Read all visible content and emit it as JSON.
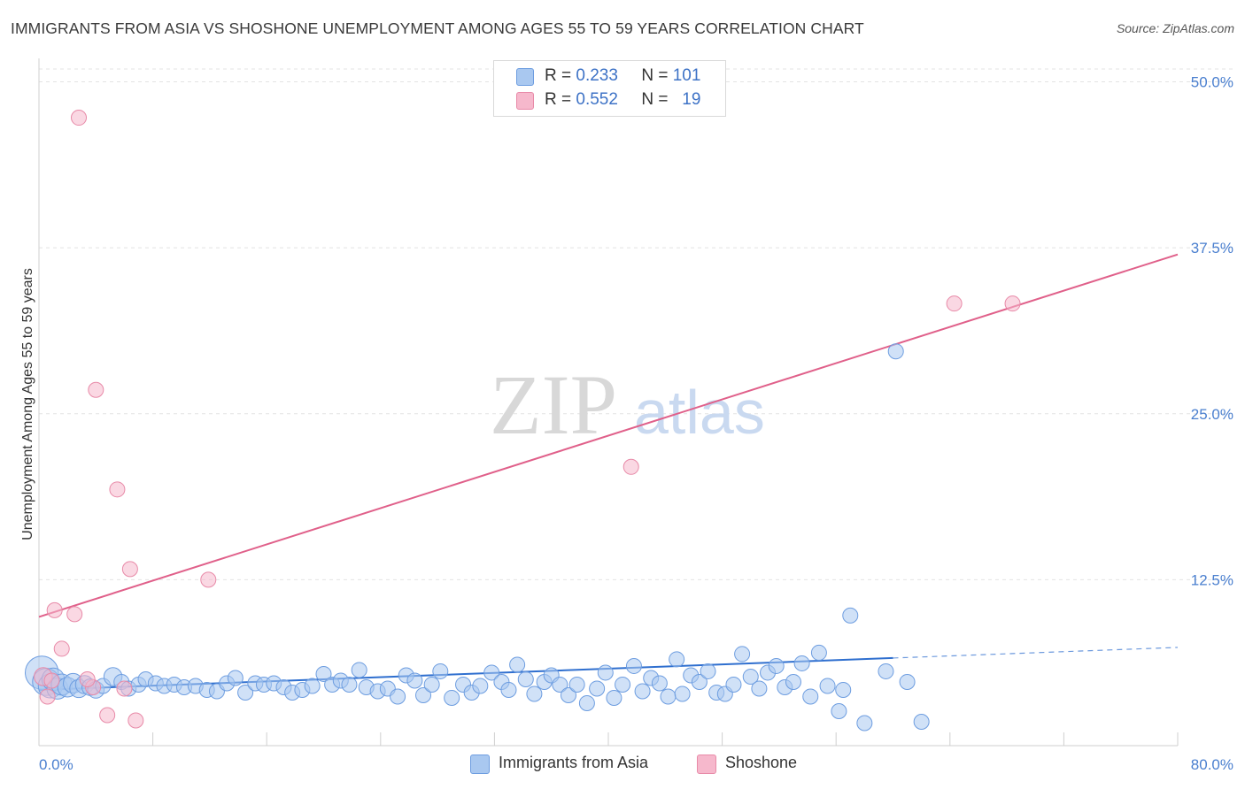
{
  "title": "IMMIGRANTS FROM ASIA VS SHOSHONE UNEMPLOYMENT AMONG AGES 55 TO 59 YEARS CORRELATION CHART",
  "source": "Source: ZipAtlas.com",
  "watermark": {
    "zip": "ZIP",
    "atlas": "atlas"
  },
  "legend": {
    "asia": {
      "r_label": "R =",
      "r_value": "0.233",
      "n_label": "N =",
      "n_value": "101"
    },
    "shoshone": {
      "r_label": "R =",
      "r_value": "0.552",
      "n_label": "N =",
      "n_value": "19"
    }
  },
  "bottom_legend": {
    "asia": "Immigrants from Asia",
    "shoshone": "Shoshone"
  },
  "colors": {
    "asia_fill": "#a9c8f0",
    "asia_stroke": "#6d9de0",
    "asia_line": "#2f6fcf",
    "shoshone_fill": "#f6b8cc",
    "shoshone_stroke": "#e88aa8",
    "shoshone_line": "#e0608a",
    "grid": "#e3e3e3",
    "tick": "#4a7fcf"
  },
  "chart_data": {
    "type": "scatter",
    "title": "IMMIGRANTS FROM ASIA VS SHOSHONE UNEMPLOYMENT AMONG AGES 55 TO 59 YEARS CORRELATION CHART",
    "xlabel": "",
    "ylabel": "Unemployment Among Ages 55 to 59 years",
    "xlim": [
      0,
      80
    ],
    "ylim": [
      0,
      51.5
    ],
    "x_tick_labels": [
      "0.0%",
      "80.0%"
    ],
    "y_ticks": [
      12.5,
      25.0,
      37.5,
      50.0
    ],
    "y_tick_labels": [
      "12.5%",
      "25.0%",
      "37.5%",
      "50.0%"
    ],
    "grid": true,
    "legend_position": "top-center",
    "series": [
      {
        "name": "Immigrants from Asia",
        "r": 0.233,
        "n": 101,
        "trend": {
          "x0": 0,
          "y0": 4.2,
          "x1": 60,
          "y1": 6.6,
          "dash_to_x": 80,
          "dash_to_y": 7.4
        },
        "points": [
          [
            0.2,
            5.5,
            2.2
          ],
          [
            0.5,
            4.8,
            1.8
          ],
          [
            0.8,
            4.5,
            1.6
          ],
          [
            1.0,
            5.0,
            1.5
          ],
          [
            1.3,
            4.3,
            1.4
          ],
          [
            1.6,
            4.6,
            1.4
          ],
          [
            2.0,
            4.4,
            1.3
          ],
          [
            2.4,
            4.7,
            1.3
          ],
          [
            2.8,
            4.3,
            1.2
          ],
          [
            3.2,
            4.6,
            1.2
          ],
          [
            3.6,
            4.4,
            1.1
          ],
          [
            4.0,
            4.2,
            1.1
          ],
          [
            4.5,
            4.5,
            1.0
          ],
          [
            5.2,
            5.2,
            1.2
          ],
          [
            5.8,
            4.8,
            1.0
          ],
          [
            6.3,
            4.3,
            1.0
          ],
          [
            7.0,
            4.6,
            1.0
          ],
          [
            7.5,
            5.0,
            1.0
          ],
          [
            8.2,
            4.7,
            1.0
          ],
          [
            8.8,
            4.5,
            1.0
          ],
          [
            9.5,
            4.6,
            1.0
          ],
          [
            10.2,
            4.4,
            1.0
          ],
          [
            11.0,
            4.5,
            1.0
          ],
          [
            11.8,
            4.2,
            1.0
          ],
          [
            12.5,
            4.1,
            1.0
          ],
          [
            13.2,
            4.7,
            1.0
          ],
          [
            13.8,
            5.1,
            1.0
          ],
          [
            14.5,
            4.0,
            1.0
          ],
          [
            15.2,
            4.7,
            1.0
          ],
          [
            15.8,
            4.6,
            1.0
          ],
          [
            16.5,
            4.7,
            1.0
          ],
          [
            17.2,
            4.4,
            1.0
          ],
          [
            17.8,
            4.0,
            1.0
          ],
          [
            18.5,
            4.2,
            1.0
          ],
          [
            19.2,
            4.5,
            1.0
          ],
          [
            20.0,
            5.4,
            1.0
          ],
          [
            20.6,
            4.6,
            1.0
          ],
          [
            21.2,
            4.9,
            1.0
          ],
          [
            21.8,
            4.6,
            1.0
          ],
          [
            22.5,
            5.7,
            1.0
          ],
          [
            23.0,
            4.4,
            1.0
          ],
          [
            23.8,
            4.1,
            1.0
          ],
          [
            24.5,
            4.3,
            1.0
          ],
          [
            25.2,
            3.7,
            1.0
          ],
          [
            25.8,
            5.3,
            1.0
          ],
          [
            26.4,
            4.9,
            1.0
          ],
          [
            27.0,
            3.8,
            1.0
          ],
          [
            27.6,
            4.6,
            1.0
          ],
          [
            28.2,
            5.6,
            1.0
          ],
          [
            29.0,
            3.6,
            1.0
          ],
          [
            29.8,
            4.6,
            1.0
          ],
          [
            30.4,
            4.0,
            1.0
          ],
          [
            31.0,
            4.5,
            1.0
          ],
          [
            31.8,
            5.5,
            1.0
          ],
          [
            32.5,
            4.8,
            1.0
          ],
          [
            33.0,
            4.2,
            1.0
          ],
          [
            33.6,
            6.1,
            1.0
          ],
          [
            34.2,
            5.0,
            1.0
          ],
          [
            34.8,
            3.9,
            1.0
          ],
          [
            35.5,
            4.8,
            1.0
          ],
          [
            36.0,
            5.3,
            1.0
          ],
          [
            36.6,
            4.6,
            1.0
          ],
          [
            37.2,
            3.8,
            1.0
          ],
          [
            37.8,
            4.6,
            1.0
          ],
          [
            38.5,
            3.2,
            1.0
          ],
          [
            39.2,
            4.3,
            1.0
          ],
          [
            39.8,
            5.5,
            1.0
          ],
          [
            40.4,
            3.6,
            1.0
          ],
          [
            41.0,
            4.6,
            1.0
          ],
          [
            41.8,
            6.0,
            1.0
          ],
          [
            42.4,
            4.1,
            1.0
          ],
          [
            43.0,
            5.1,
            1.0
          ],
          [
            43.6,
            4.7,
            1.0
          ],
          [
            44.2,
            3.7,
            1.0
          ],
          [
            44.8,
            6.5,
            1.0
          ],
          [
            45.2,
            3.9,
            1.0
          ],
          [
            45.8,
            5.3,
            1.0
          ],
          [
            46.4,
            4.8,
            1.0
          ],
          [
            47.0,
            5.6,
            1.0
          ],
          [
            47.6,
            4.0,
            1.0
          ],
          [
            48.2,
            3.9,
            1.0
          ],
          [
            48.8,
            4.6,
            1.0
          ],
          [
            49.4,
            6.9,
            1.0
          ],
          [
            50.0,
            5.2,
            1.0
          ],
          [
            50.6,
            4.3,
            1.0
          ],
          [
            51.2,
            5.5,
            1.0
          ],
          [
            51.8,
            6.0,
            1.0
          ],
          [
            52.4,
            4.4,
            1.0
          ],
          [
            53.0,
            4.8,
            1.0
          ],
          [
            53.6,
            6.2,
            1.0
          ],
          [
            54.2,
            3.7,
            1.0
          ],
          [
            54.8,
            7.0,
            1.0
          ],
          [
            55.4,
            4.5,
            1.0
          ],
          [
            56.2,
            2.6,
            1.0
          ],
          [
            57.0,
            9.8,
            1.0
          ],
          [
            58.0,
            1.7,
            1.0
          ],
          [
            59.5,
            5.6,
            1.0
          ],
          [
            60.2,
            29.7,
            1.0
          ],
          [
            56.5,
            4.2,
            1.0
          ],
          [
            61.0,
            4.8,
            1.0
          ],
          [
            62.0,
            1.8,
            1.0
          ]
        ]
      },
      {
        "name": "Shoshone",
        "r": 0.552,
        "n": 19,
        "trend": {
          "x0": 0,
          "y0": 9.7,
          "x1": 80,
          "y1": 37.0
        },
        "points": [
          [
            0.3,
            5.2,
            1.2
          ],
          [
            0.6,
            3.7,
            1.0
          ],
          [
            0.9,
            4.9,
            1.0
          ],
          [
            1.1,
            10.2,
            1.0
          ],
          [
            1.6,
            7.3,
            1.0
          ],
          [
            2.5,
            9.9,
            1.0
          ],
          [
            2.8,
            47.3,
            1.0
          ],
          [
            3.8,
            4.4,
            1.0
          ],
          [
            4.0,
            26.8,
            1.0
          ],
          [
            4.8,
            2.3,
            1.0
          ],
          [
            5.5,
            19.3,
            1.0
          ],
          [
            6.0,
            4.3,
            1.0
          ],
          [
            6.4,
            13.3,
            1.0
          ],
          [
            6.8,
            1.9,
            1.0
          ],
          [
            11.9,
            12.5,
            1.0
          ],
          [
            41.6,
            21.0,
            1.0
          ],
          [
            64.3,
            33.3,
            1.0
          ],
          [
            68.4,
            33.3,
            1.0
          ],
          [
            3.4,
            5.0,
            1.0
          ]
        ]
      }
    ]
  }
}
